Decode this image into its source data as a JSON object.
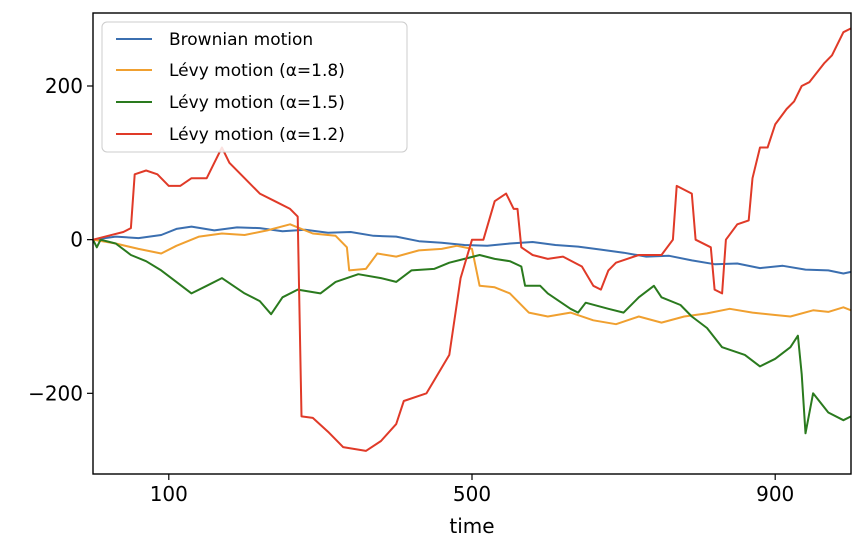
{
  "chart_data": {
    "type": "line",
    "title": "",
    "xlabel": "time",
    "ylabel": "",
    "xlim": [
      0,
      1000
    ],
    "ylim": [
      -305,
      295
    ],
    "xticks": [
      {
        "value": 100,
        "label": "100"
      },
      {
        "value": 500,
        "label": "500"
      },
      {
        "value": 900,
        "label": "900"
      }
    ],
    "yticks": [
      {
        "value": 200,
        "label": "200"
      },
      {
        "value": 0,
        "label": "0"
      },
      {
        "value": -200,
        "label": "−200"
      }
    ],
    "legend_position": "top-left",
    "series": [
      {
        "name": "Brownian motion",
        "legend_label": "Brownian motion",
        "color": "#3b6fb0",
        "points": [
          [
            0,
            0
          ],
          [
            30,
            4
          ],
          [
            60,
            2
          ],
          [
            90,
            6
          ],
          [
            110,
            14
          ],
          [
            130,
            17
          ],
          [
            160,
            12
          ],
          [
            190,
            16
          ],
          [
            220,
            15
          ],
          [
            250,
            11
          ],
          [
            280,
            13
          ],
          [
            310,
            9
          ],
          [
            340,
            10
          ],
          [
            370,
            5
          ],
          [
            400,
            4
          ],
          [
            430,
            -2
          ],
          [
            460,
            -4
          ],
          [
            490,
            -7
          ],
          [
            520,
            -8
          ],
          [
            550,
            -5
          ],
          [
            580,
            -3
          ],
          [
            610,
            -7
          ],
          [
            640,
            -9
          ],
          [
            670,
            -13
          ],
          [
            700,
            -17
          ],
          [
            730,
            -22
          ],
          [
            760,
            -21
          ],
          [
            790,
            -27
          ],
          [
            820,
            -32
          ],
          [
            850,
            -31
          ],
          [
            880,
            -37
          ],
          [
            910,
            -34
          ],
          [
            940,
            -39
          ],
          [
            970,
            -40
          ],
          [
            990,
            -44
          ],
          [
            1000,
            -42
          ]
        ]
      },
      {
        "name": "Lévy motion (α = 1.8)",
        "legend_label": "Lévy motion (α=1.8)",
        "color": "#f0a030",
        "points": [
          [
            0,
            0
          ],
          [
            30,
            -5
          ],
          [
            60,
            -12
          ],
          [
            90,
            -18
          ],
          [
            110,
            -8
          ],
          [
            140,
            4
          ],
          [
            170,
            8
          ],
          [
            200,
            6
          ],
          [
            230,
            12
          ],
          [
            260,
            20
          ],
          [
            290,
            8
          ],
          [
            320,
            5
          ],
          [
            335,
            -10
          ],
          [
            338,
            -40
          ],
          [
            360,
            -38
          ],
          [
            375,
            -18
          ],
          [
            400,
            -22
          ],
          [
            430,
            -14
          ],
          [
            460,
            -12
          ],
          [
            480,
            -8
          ],
          [
            500,
            -12
          ],
          [
            510,
            -60
          ],
          [
            530,
            -62
          ],
          [
            550,
            -70
          ],
          [
            575,
            -95
          ],
          [
            600,
            -100
          ],
          [
            630,
            -95
          ],
          [
            660,
            -105
          ],
          [
            690,
            -110
          ],
          [
            720,
            -100
          ],
          [
            750,
            -108
          ],
          [
            780,
            -100
          ],
          [
            810,
            -96
          ],
          [
            840,
            -90
          ],
          [
            870,
            -95
          ],
          [
            900,
            -98
          ],
          [
            920,
            -100
          ],
          [
            950,
            -92
          ],
          [
            970,
            -94
          ],
          [
            990,
            -88
          ],
          [
            1000,
            -92
          ]
        ]
      },
      {
        "name": "Lévy motion (α = 1.5)",
        "legend_label": "Lévy motion (α=1.5)",
        "color": "#2a7a1e",
        "points": [
          [
            0,
            0
          ],
          [
            5,
            -10
          ],
          [
            10,
            0
          ],
          [
            30,
            -5
          ],
          [
            50,
            -20
          ],
          [
            70,
            -28
          ],
          [
            90,
            -40
          ],
          [
            110,
            -55
          ],
          [
            130,
            -70
          ],
          [
            150,
            -60
          ],
          [
            170,
            -50
          ],
          [
            200,
            -70
          ],
          [
            220,
            -80
          ],
          [
            235,
            -97
          ],
          [
            250,
            -75
          ],
          [
            270,
            -65
          ],
          [
            300,
            -70
          ],
          [
            320,
            -55
          ],
          [
            350,
            -45
          ],
          [
            380,
            -50
          ],
          [
            400,
            -55
          ],
          [
            420,
            -40
          ],
          [
            450,
            -38
          ],
          [
            470,
            -30
          ],
          [
            490,
            -25
          ],
          [
            510,
            -20
          ],
          [
            530,
            -25
          ],
          [
            550,
            -28
          ],
          [
            565,
            -35
          ],
          [
            570,
            -60
          ],
          [
            590,
            -60
          ],
          [
            600,
            -70
          ],
          [
            630,
            -90
          ],
          [
            640,
            -95
          ],
          [
            650,
            -82
          ],
          [
            680,
            -90
          ],
          [
            700,
            -95
          ],
          [
            720,
            -75
          ],
          [
            740,
            -60
          ],
          [
            750,
            -75
          ],
          [
            775,
            -85
          ],
          [
            790,
            -100
          ],
          [
            810,
            -115
          ],
          [
            830,
            -140
          ],
          [
            860,
            -150
          ],
          [
            880,
            -165
          ],
          [
            900,
            -155
          ],
          [
            920,
            -140
          ],
          [
            930,
            -125
          ],
          [
            935,
            -175
          ],
          [
            940,
            -252
          ],
          [
            950,
            -200
          ],
          [
            970,
            -225
          ],
          [
            990,
            -235
          ],
          [
            1000,
            -230
          ]
        ]
      },
      {
        "name": "Lévy motion (α = 1.2)",
        "legend_label": "Lévy motion (α=1.2)",
        "color": "#e03a28",
        "points": [
          [
            0,
            0
          ],
          [
            20,
            5
          ],
          [
            40,
            10
          ],
          [
            50,
            15
          ],
          [
            55,
            85
          ],
          [
            70,
            90
          ],
          [
            85,
            85
          ],
          [
            100,
            70
          ],
          [
            115,
            70
          ],
          [
            130,
            80
          ],
          [
            150,
            80
          ],
          [
            160,
            100
          ],
          [
            170,
            120
          ],
          [
            180,
            100
          ],
          [
            200,
            80
          ],
          [
            220,
            60
          ],
          [
            240,
            50
          ],
          [
            260,
            40
          ],
          [
            270,
            30
          ],
          [
            275,
            -230
          ],
          [
            290,
            -232
          ],
          [
            310,
            -250
          ],
          [
            330,
            -270
          ],
          [
            360,
            -275
          ],
          [
            380,
            -262
          ],
          [
            400,
            -240
          ],
          [
            410,
            -210
          ],
          [
            440,
            -200
          ],
          [
            470,
            -150
          ],
          [
            485,
            -50
          ],
          [
            500,
            0
          ],
          [
            515,
            0
          ],
          [
            530,
            50
          ],
          [
            545,
            60
          ],
          [
            555,
            40
          ],
          [
            560,
            40
          ],
          [
            565,
            -10
          ],
          [
            580,
            -20
          ],
          [
            600,
            -25
          ],
          [
            620,
            -22
          ],
          [
            645,
            -35
          ],
          [
            660,
            -60
          ],
          [
            670,
            -65
          ],
          [
            680,
            -40
          ],
          [
            690,
            -30
          ],
          [
            720,
            -20
          ],
          [
            750,
            -20
          ],
          [
            765,
            0
          ],
          [
            770,
            70
          ],
          [
            790,
            60
          ],
          [
            795,
            0
          ],
          [
            815,
            -10
          ],
          [
            820,
            -65
          ],
          [
            830,
            -70
          ],
          [
            835,
            0
          ],
          [
            850,
            20
          ],
          [
            865,
            25
          ],
          [
            870,
            80
          ],
          [
            880,
            120
          ],
          [
            890,
            120
          ],
          [
            900,
            150
          ],
          [
            915,
            170
          ],
          [
            925,
            180
          ],
          [
            935,
            200
          ],
          [
            945,
            205
          ],
          [
            965,
            230
          ],
          [
            975,
            240
          ],
          [
            990,
            270
          ],
          [
            1000,
            275
          ]
        ]
      }
    ]
  }
}
